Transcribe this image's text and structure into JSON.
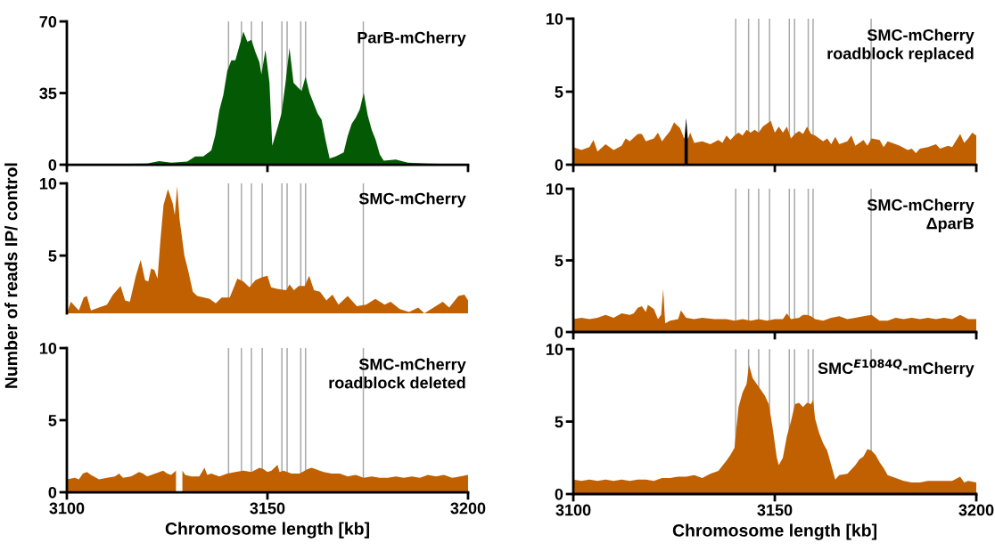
{
  "chart_data": [
    {
      "type": "area",
      "title": "ParB-mCherry",
      "xlim": [
        3100,
        3200
      ],
      "ylim": [
        0,
        70
      ],
      "xticks": [
        3100,
        3150,
        3200
      ],
      "yticks": [
        0,
        35,
        70
      ],
      "tick_labels": "y",
      "series": [
        {
          "color": "#045a04",
          "x": [
            3100,
            3110,
            3120,
            3123,
            3126,
            3130,
            3132,
            3134,
            3136,
            3137,
            3138,
            3139,
            3140,
            3141,
            3142,
            3143,
            3144,
            3145,
            3146,
            3147,
            3148,
            3148.5,
            3149.5,
            3150.5,
            3151.2,
            3152.5,
            3153.5,
            3154.5,
            3155.5,
            3156.5,
            3157.5,
            3158.5,
            3159.5,
            3160.5,
            3161.5,
            3162.5,
            3163.5,
            3164.5,
            3165.5,
            3167,
            3168,
            3169,
            3170,
            3171,
            3172,
            3173,
            3174,
            3175,
            3176,
            3177,
            3178,
            3179,
            3182,
            3185,
            3190,
            3200
          ],
          "values": [
            0.2,
            0.3,
            0.5,
            1.8,
            1,
            1.5,
            4,
            4,
            7,
            14.5,
            26.5,
            34,
            46,
            51,
            51,
            58,
            65,
            60,
            61,
            55,
            50,
            44,
            56,
            40,
            9.3,
            18,
            25,
            40,
            57,
            40,
            38,
            36,
            43,
            35,
            30,
            25,
            22,
            12,
            3,
            4,
            5,
            6,
            14,
            20,
            23,
            27,
            35,
            24,
            17,
            12,
            5,
            2,
            2.5,
            1,
            0.5,
            0.2
          ]
        }
      ],
      "ref_lines": [
        {
          "axis": "x",
          "value": 3140.3,
          "color": "#aaaaaa"
        },
        {
          "axis": "x",
          "value": 3143.5,
          "color": "#aaaaaa"
        },
        {
          "axis": "x",
          "value": 3146,
          "color": "#aaaaaa"
        },
        {
          "axis": "x",
          "value": 3148.7,
          "color": "#aaaaaa"
        },
        {
          "axis": "x",
          "value": 3153.6,
          "color": "#aaaaaa"
        },
        {
          "axis": "x",
          "value": 3154.9,
          "color": "#aaaaaa"
        },
        {
          "axis": "x",
          "value": 3158.3,
          "color": "#aaaaaa"
        },
        {
          "axis": "x",
          "value": 3159.5,
          "color": "#aaaaaa"
        },
        {
          "axis": "x",
          "value": 3173.9,
          "color": "#aaaaaa"
        }
      ]
    },
    {
      "type": "area",
      "title": "SMC-mCherry\nroadblock replaced",
      "xlim": [
        3100,
        3200
      ],
      "ylim": [
        0,
        10
      ],
      "xticks": [
        3100,
        3150,
        3200
      ],
      "yticks": [
        0,
        5,
        10
      ],
      "tick_labels": "y",
      "series": [
        {
          "color": "#c06000",
          "x": [
            3100,
            3102,
            3104,
            3105,
            3106,
            3108,
            3110,
            3112,
            3113,
            3114,
            3116,
            3117,
            3118,
            3120,
            3121,
            3122,
            3124,
            3125,
            3126.5,
            3127.5,
            3128.5,
            3129,
            3130,
            3132,
            3134,
            3136,
            3137,
            3138,
            3139,
            3140,
            3141,
            3142,
            3143,
            3144,
            3145,
            3146,
            3147,
            3148,
            3149,
            3150,
            3151,
            3152,
            3153,
            3154,
            3155,
            3156,
            3157,
            3158,
            3159,
            3160,
            3162,
            3163,
            3164,
            3165,
            3166,
            3168,
            3169,
            3170,
            3172,
            3173,
            3174,
            3176,
            3177,
            3178,
            3180,
            3181,
            3183,
            3184,
            3185,
            3186,
            3188,
            3190,
            3191,
            3193,
            3194,
            3196,
            3197,
            3198,
            3199,
            3200
          ],
          "values": [
            1.2,
            1.0,
            1.2,
            1.7,
            0.9,
            1.4,
            1.0,
            1.3,
            1.8,
            1.6,
            2.1,
            2.1,
            1.6,
            1.8,
            2.2,
            1.6,
            2.3,
            2.9,
            2.5,
            1.8,
            1.8,
            2.2,
            1.5,
            1.6,
            1.4,
            1.7,
            1.5,
            2.0,
            1.7,
            2.0,
            2.2,
            2.0,
            2.4,
            2.2,
            2.4,
            2.2,
            2.6,
            2.8,
            3.0,
            2.2,
            2.6,
            2.2,
            2.6,
            1.8,
            2.1,
            2.3,
            2.1,
            2.6,
            2.1,
            2.0,
            1.6,
            1.8,
            1.4,
            1.9,
            1.4,
            1.6,
            2.0,
            1.3,
            1.7,
            1.3,
            1.8,
            1.7,
            1.2,
            1.6,
            1.4,
            1.3,
            1.0,
            1.1,
            0.8,
            1.1,
            1.2,
            1.4,
            1.1,
            1.3,
            1.2,
            2.1,
            1.5,
            1.8,
            2.2,
            2.0
          ]
        },
        {
          "color": "#000000",
          "x": [
            3127.6,
            3128,
            3128.4
          ],
          "values": [
            1.8,
            3.2,
            1.8
          ]
        }
      ],
      "ref_lines": [
        {
          "axis": "x",
          "value": 3140.3,
          "color": "#aaaaaa"
        },
        {
          "axis": "x",
          "value": 3143.5,
          "color": "#aaaaaa"
        },
        {
          "axis": "x",
          "value": 3146,
          "color": "#aaaaaa"
        },
        {
          "axis": "x",
          "value": 3148.7,
          "color": "#aaaaaa"
        },
        {
          "axis": "x",
          "value": 3153.6,
          "color": "#aaaaaa"
        },
        {
          "axis": "x",
          "value": 3154.9,
          "color": "#aaaaaa"
        },
        {
          "axis": "x",
          "value": 3158.3,
          "color": "#aaaaaa"
        },
        {
          "axis": "x",
          "value": 3159.5,
          "color": "#aaaaaa"
        },
        {
          "axis": "x",
          "value": 3173.9,
          "color": "#aaaaaa"
        }
      ]
    },
    {
      "type": "area",
      "title": "SMC-mCherry",
      "ylabel": "Number of reads IP/ control",
      "xlim": [
        3100,
        3200
      ],
      "ylim": [
        1,
        10
      ],
      "yticks": [
        5,
        10
      ],
      "tick_labels": "y",
      "series": [
        {
          "color": "#c06000",
          "x": [
            3100,
            3101,
            3102,
            3103,
            3104.2,
            3105,
            3106,
            3108,
            3110,
            3111.5,
            3113.4,
            3114.5,
            3115.7,
            3117.2,
            3118.4,
            3119.5,
            3120.3,
            3121,
            3121.8,
            3122.6,
            3123.3,
            3124.1,
            3125.2,
            3126.4,
            3126.9,
            3127.5,
            3128.1,
            3129.3,
            3130.2,
            3131.4,
            3132.5,
            3135.6,
            3137.1,
            3138.6,
            3140.6,
            3142.5,
            3144,
            3145.5,
            3147,
            3148.6,
            3150,
            3150.9,
            3152.4,
            3154.7,
            3155.5,
            3156.6,
            3157.8,
            3159.3,
            3160.4,
            3161.6,
            3163.1,
            3164.7,
            3166.2,
            3167.7,
            3170,
            3172.3,
            3174.6,
            3176.9,
            3179.2,
            3180.7,
            3183,
            3185.3,
            3187.6,
            3189.1,
            3191.4,
            3193.7,
            3195.3,
            3197.6,
            3199.1,
            3200
          ],
          "values": [
            1.0,
            1.8,
            1.5,
            1.2,
            2.1,
            2.2,
            1.2,
            1.4,
            1.6,
            2.3,
            2.9,
            1.9,
            1.8,
            3.6,
            4.7,
            3.3,
            3.2,
            4.1,
            4.0,
            3.4,
            6.0,
            8.5,
            9.6,
            8.6,
            7.8,
            9.8,
            7.5,
            5.0,
            4.0,
            2.5,
            2.2,
            2.0,
            1.7,
            2.1,
            2.1,
            3.4,
            3.2,
            2.8,
            3.3,
            3.5,
            3.6,
            2.8,
            2.7,
            2.6,
            3.0,
            2.6,
            2.9,
            2.9,
            3.6,
            2.6,
            2.5,
            1.9,
            2.3,
            1.6,
            2.2,
            1.5,
            1.6,
            2.0,
            1.6,
            1.8,
            1.3,
            1.1,
            1.4,
            1.0,
            1.4,
            1.8,
            1.4,
            2.2,
            2.3,
            1.9
          ]
        }
      ],
      "ref_lines": [
        {
          "axis": "x",
          "value": 3140.3,
          "color": "#aaaaaa"
        },
        {
          "axis": "x",
          "value": 3143.5,
          "color": "#aaaaaa"
        },
        {
          "axis": "x",
          "value": 3146,
          "color": "#aaaaaa"
        },
        {
          "axis": "x",
          "value": 3148.7,
          "color": "#aaaaaa"
        },
        {
          "axis": "x",
          "value": 3153.6,
          "color": "#aaaaaa"
        },
        {
          "axis": "x",
          "value": 3154.9,
          "color": "#aaaaaa"
        },
        {
          "axis": "x",
          "value": 3158.3,
          "color": "#aaaaaa"
        },
        {
          "axis": "x",
          "value": 3159.5,
          "color": "#aaaaaa"
        },
        {
          "axis": "x",
          "value": 3173.9,
          "color": "#aaaaaa"
        }
      ]
    },
    {
      "type": "area",
      "title": "SMC-mCherry\nΔparB",
      "xlim": [
        3100,
        3200
      ],
      "ylim": [
        0,
        10
      ],
      "xticks": [
        3100,
        3150,
        3200
      ],
      "yticks": [
        0,
        5,
        10
      ],
      "tick_labels": "y",
      "series": [
        {
          "color": "#c06000",
          "x": [
            3100,
            3102,
            3104,
            3106,
            3108,
            3110,
            3112,
            3114,
            3115,
            3116,
            3117,
            3118,
            3118.5,
            3120,
            3121,
            3121.8,
            3122.3,
            3122.8,
            3124,
            3126,
            3126.7,
            3128,
            3130,
            3132,
            3135,
            3138,
            3140,
            3142,
            3144,
            3146,
            3148,
            3150,
            3152,
            3153,
            3154,
            3156,
            3157,
            3158,
            3159,
            3160,
            3162,
            3164,
            3166,
            3168,
            3170,
            3172,
            3174,
            3176,
            3178,
            3180,
            3182,
            3184,
            3186,
            3188,
            3190,
            3192,
            3194,
            3196,
            3198,
            3200
          ],
          "values": [
            0.9,
            1.0,
            0.9,
            1.0,
            1.2,
            1.0,
            1.3,
            1.2,
            1.3,
            1.7,
            1.8,
            1.4,
            1.9,
            1.6,
            0.9,
            1.2,
            3.0,
            0.6,
            0.8,
            0.9,
            1.5,
            1.0,
            0.9,
            1.0,
            0.9,
            0.9,
            0.8,
            0.9,
            0.8,
            0.9,
            0.8,
            0.9,
            0.9,
            1.3,
            0.9,
            1.0,
            1.2,
            1.2,
            1.1,
            0.9,
            0.8,
            1.0,
            1.1,
            0.9,
            1.0,
            1.1,
            1.2,
            0.8,
            0.8,
            1.0,
            0.9,
            1.0,
            0.9,
            1.0,
            0.9,
            1.0,
            0.9,
            1.2,
            0.9,
            0.9
          ]
        }
      ],
      "ref_lines": [
        {
          "axis": "x",
          "value": 3140.3,
          "color": "#aaaaaa"
        },
        {
          "axis": "x",
          "value": 3143.5,
          "color": "#aaaaaa"
        },
        {
          "axis": "x",
          "value": 3146,
          "color": "#aaaaaa"
        },
        {
          "axis": "x",
          "value": 3148.7,
          "color": "#aaaaaa"
        },
        {
          "axis": "x",
          "value": 3153.6,
          "color": "#aaaaaa"
        },
        {
          "axis": "x",
          "value": 3154.9,
          "color": "#aaaaaa"
        },
        {
          "axis": "x",
          "value": 3158.3,
          "color": "#aaaaaa"
        },
        {
          "axis": "x",
          "value": 3159.5,
          "color": "#aaaaaa"
        },
        {
          "axis": "x",
          "value": 3173.9,
          "color": "#aaaaaa"
        }
      ]
    },
    {
      "type": "area",
      "title": "SMC-mCherry\nroadblock deleted",
      "xlabel": "Chromosome length [kb]",
      "xlim": [
        3100,
        3200
      ],
      "ylim": [
        0,
        10
      ],
      "xticks": [
        3100,
        3150,
        3200
      ],
      "yticks": [
        0,
        5,
        10
      ],
      "series": [
        {
          "color": "#c06000",
          "x": [
            3100,
            3102,
            3103,
            3104,
            3105,
            3106,
            3108,
            3110,
            3112,
            3113,
            3114,
            3116,
            3118,
            3119,
            3120,
            3122,
            3124,
            3125,
            3126,
            3127.2,
            3128,
            3128.8,
            3129.5,
            3131,
            3133,
            3134.3,
            3135,
            3136,
            3138,
            3140,
            3142,
            3144,
            3146,
            3148,
            3149,
            3150,
            3151,
            3152.5,
            3153,
            3154,
            3156,
            3158,
            3160,
            3161,
            3162,
            3163,
            3164,
            3166,
            3168,
            3170,
            3172,
            3174,
            3176,
            3178,
            3180,
            3182,
            3184,
            3186,
            3188,
            3190,
            3192,
            3194,
            3196,
            3198,
            3200
          ],
          "values": [
            0.9,
            1.0,
            0.9,
            1.3,
            1.4,
            1.2,
            0.9,
            1.0,
            1.1,
            1.3,
            1.0,
            1.1,
            1.4,
            1.3,
            1.1,
            1.3,
            1.5,
            1.3,
            1.2,
            1.5,
            null,
            1.5,
            1.2,
            1.1,
            1.1,
            1.7,
            1.2,
            1.3,
            1.1,
            1.3,
            1.4,
            1.5,
            1.4,
            1.7,
            1.6,
            1.4,
            1.5,
            1.9,
            1.4,
            1.5,
            1.3,
            1.3,
            1.6,
            1.7,
            1.6,
            1.5,
            1.4,
            1.3,
            1.3,
            1.1,
            1.2,
            1.0,
            1.1,
            1.0,
            1.0,
            1.1,
            1.0,
            1.1,
            1.0,
            1.2,
            1.1,
            1.2,
            1.0,
            1.1,
            1.2
          ]
        }
      ],
      "ref_lines": [
        {
          "axis": "x",
          "value": 3140.3,
          "color": "#aaaaaa"
        },
        {
          "axis": "x",
          "value": 3143.5,
          "color": "#aaaaaa"
        },
        {
          "axis": "x",
          "value": 3146,
          "color": "#aaaaaa"
        },
        {
          "axis": "x",
          "value": 3148.7,
          "color": "#aaaaaa"
        },
        {
          "axis": "x",
          "value": 3153.6,
          "color": "#aaaaaa"
        },
        {
          "axis": "x",
          "value": 3154.9,
          "color": "#aaaaaa"
        },
        {
          "axis": "x",
          "value": 3158.3,
          "color": "#aaaaaa"
        },
        {
          "axis": "x",
          "value": 3159.5,
          "color": "#aaaaaa"
        },
        {
          "axis": "x",
          "value": 3173.9,
          "color": "#aaaaaa"
        }
      ]
    },
    {
      "type": "area",
      "title": "SMC$^{E1084Q}$-mCherry",
      "xlabel": "Chromosome length [kb]",
      "xlim": [
        3100,
        3200
      ],
      "ylim": [
        0,
        10
      ],
      "xticks": [
        3100,
        3150,
        3200
      ],
      "yticks": [
        0,
        5,
        10
      ],
      "series": [
        {
          "color": "#c06000",
          "x": [
            3100,
            3102,
            3104,
            3106,
            3108,
            3110,
            3112,
            3114,
            3116,
            3118,
            3120,
            3122,
            3124,
            3126,
            3128,
            3130,
            3132,
            3134,
            3136,
            3138,
            3139,
            3140,
            3141,
            3142,
            3143,
            3143.6,
            3144.5,
            3145.5,
            3146.5,
            3147.5,
            3148.5,
            3149.5,
            3150.5,
            3151,
            3152,
            3153,
            3154,
            3155,
            3156,
            3157,
            3158,
            3159,
            3159.5,
            3160,
            3161,
            3162,
            3163,
            3164,
            3165,
            3166,
            3168,
            3170,
            3171,
            3172,
            3173,
            3174,
            3175,
            3176,
            3177,
            3178,
            3180,
            3182,
            3184,
            3186,
            3188,
            3190,
            3192,
            3194,
            3196,
            3197,
            3198,
            3200
          ],
          "values": [
            1.0,
            0.9,
            1.0,
            0.9,
            1.0,
            0.9,
            1.0,
            0.9,
            1.0,
            1.0,
            0.9,
            1.1,
            1.1,
            1.2,
            1.2,
            1.3,
            1.1,
            1.4,
            1.6,
            2.3,
            2.7,
            3.2,
            6.0,
            7.0,
            7.6,
            8.9,
            8.0,
            7.6,
            7.2,
            6.8,
            6.2,
            4.5,
            2.5,
            2.0,
            2.5,
            4.0,
            5.0,
            6.2,
            6.3,
            6.0,
            6.3,
            6.2,
            6.5,
            5.2,
            4.2,
            3.5,
            3.0,
            2.0,
            1.0,
            1.3,
            1.4,
            2.0,
            2.4,
            2.6,
            3.1,
            3.0,
            2.7,
            2.2,
            1.8,
            1.3,
            1.1,
            0.9,
            0.8,
            0.8,
            0.9,
            0.9,
            0.9,
            0.9,
            1.2,
            0.8,
            0.9,
            0.8
          ]
        }
      ],
      "ref_lines": [
        {
          "axis": "x",
          "value": 3140.3,
          "color": "#aaaaaa"
        },
        {
          "axis": "x",
          "value": 3143.5,
          "color": "#aaaaaa"
        },
        {
          "axis": "x",
          "value": 3146,
          "color": "#aaaaaa"
        },
        {
          "axis": "x",
          "value": 3148.7,
          "color": "#aaaaaa"
        },
        {
          "axis": "x",
          "value": 3153.6,
          "color": "#aaaaaa"
        },
        {
          "axis": "x",
          "value": 3154.9,
          "color": "#aaaaaa"
        },
        {
          "axis": "x",
          "value": 3158.3,
          "color": "#aaaaaa"
        },
        {
          "axis": "x",
          "value": 3159.5,
          "color": "#aaaaaa"
        },
        {
          "axis": "x",
          "value": 3173.9,
          "color": "#aaaaaa"
        }
      ]
    }
  ]
}
